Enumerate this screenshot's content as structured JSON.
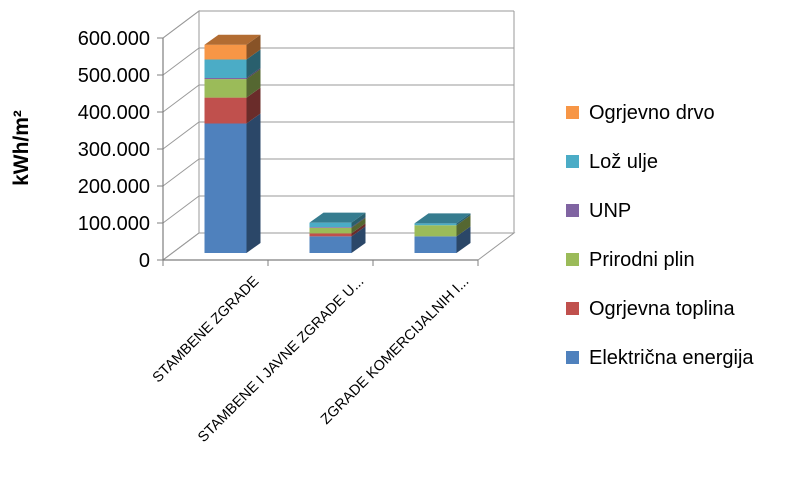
{
  "chart_data": {
    "type": "bar",
    "stacked": true,
    "three_d": true,
    "ylabel": "kWh/m²",
    "ylim": [
      0,
      600000
    ],
    "yticks": [
      0,
      100000,
      200000,
      300000,
      400000,
      500000,
      600000
    ],
    "ytick_labels": [
      "0",
      "100.000",
      "200.000",
      "300.000",
      "400.000",
      "500.000",
      "600.000"
    ],
    "categories": [
      "STAMBENE ZGRADE",
      "STAMBENE I JAVNE ZGRADE U...",
      "ZGRADE KOMERCIJALNIH I..."
    ],
    "grid": true,
    "legend_position": "right",
    "series": [
      {
        "name": "Električna energija",
        "color": "#4f81bd",
        "values": [
          350000,
          45000,
          45000
        ]
      },
      {
        "name": "Ogrjevna toplina",
        "color": "#c0504d",
        "values": [
          70000,
          8000,
          0
        ]
      },
      {
        "name": "Prirodni plin",
        "color": "#9bbb59",
        "values": [
          50000,
          15000,
          30000
        ]
      },
      {
        "name": "UNP",
        "color": "#8064a2",
        "values": [
          3000,
          2000,
          0
        ]
      },
      {
        "name": "Lož ulje",
        "color": "#4bacc6",
        "values": [
          50000,
          12000,
          5000
        ]
      },
      {
        "name": "Ogrjevno drvo",
        "color": "#f79646",
        "values": [
          40000,
          0,
          0
        ]
      }
    ]
  }
}
